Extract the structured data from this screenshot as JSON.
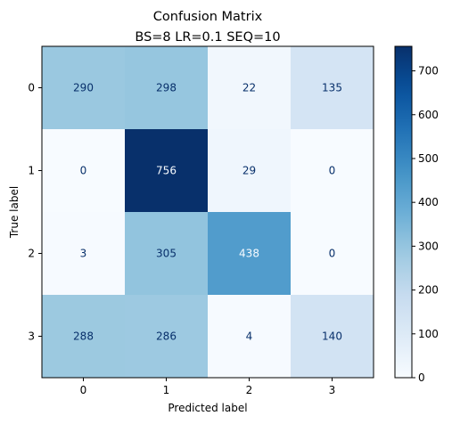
{
  "chart_data": {
    "type": "heatmap",
    "title": "Confusion Matrix",
    "subtitle": "BS=8 LR=0.1 SEQ=10",
    "xlabel": "Predicted label",
    "ylabel": "True label",
    "x_categories": [
      "0",
      "1",
      "2",
      "3"
    ],
    "y_categories": [
      "0",
      "1",
      "2",
      "3"
    ],
    "matrix": [
      [
        290,
        298,
        22,
        135
      ],
      [
        0,
        756,
        29,
        0
      ],
      [
        3,
        305,
        438,
        0
      ],
      [
        288,
        286,
        4,
        140
      ]
    ],
    "colormap": "Blues",
    "colorbar": {
      "vmin": 0,
      "vmax": 756,
      "ticks": [
        0,
        100,
        200,
        300,
        400,
        500,
        600,
        700
      ]
    },
    "colors": {
      "low": "#f7fbff",
      "high": "#08306b",
      "text_dark_bg": "#f7fbff",
      "text_light_bg": "#08306b"
    }
  }
}
